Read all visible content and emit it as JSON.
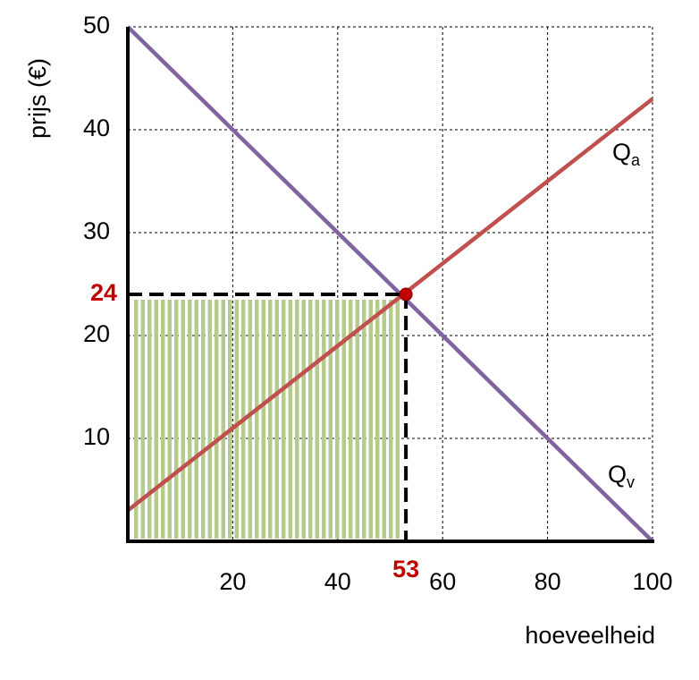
{
  "chart_data": {
    "type": "line",
    "x_label": "hoeveelheid",
    "y_label": "prijs (€)",
    "x": [
      0,
      100
    ],
    "series": [
      {
        "name": "Qa",
        "color": "#c0504d",
        "values": [
          3,
          43
        ]
      },
      {
        "name": "Qv",
        "color": "#8064a2",
        "values": [
          50,
          0
        ]
      }
    ],
    "equilibrium": {
      "x": 53,
      "y": 24,
      "color": "#c00000",
      "fill": "#9bbb59"
    },
    "xlim": [
      0,
      100
    ],
    "ylim": [
      0,
      50
    ],
    "xticks": [
      20,
      40,
      60,
      80,
      100
    ],
    "yticks": [
      10,
      20,
      30,
      40,
      50
    ],
    "grid": true
  }
}
